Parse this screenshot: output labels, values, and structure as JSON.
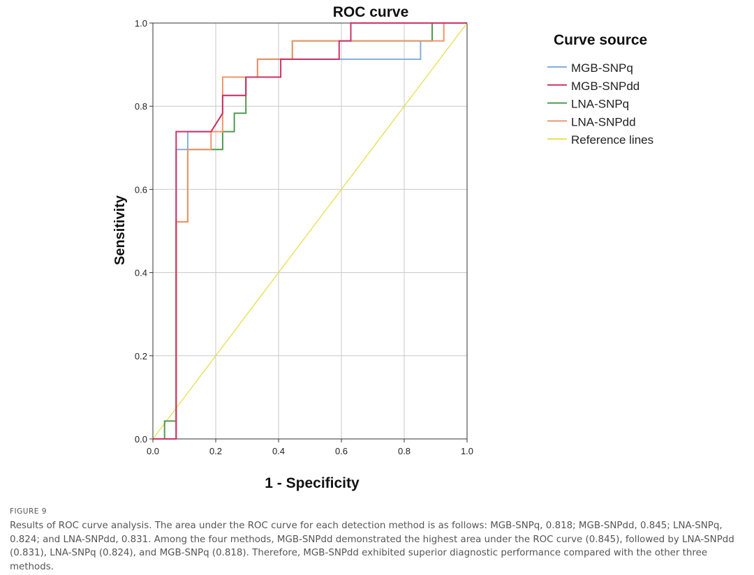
{
  "chart_data": {
    "type": "line",
    "title": "ROC curve",
    "xlabel": "1 - Specificity",
    "ylabel": "Sensitivity",
    "xlim": [
      0,
      1
    ],
    "ylim": [
      0,
      1
    ],
    "xticks": [
      "0.0",
      "0.2",
      "0.4",
      "0.6",
      "0.8",
      "1.0"
    ],
    "yticks": [
      "0.0",
      "0.2",
      "0.4",
      "0.6",
      "0.8",
      "1.0"
    ],
    "grid": true,
    "legend": {
      "title": "Curve source",
      "position": "right"
    },
    "series": [
      {
        "name": "MGB-SNPq",
        "color": "#82aee0",
        "points": [
          [
            0,
            0
          ],
          [
            0.074,
            0
          ],
          [
            0.074,
            0.696
          ],
          [
            0.111,
            0.696
          ],
          [
            0.111,
            0.739
          ],
          [
            0.185,
            0.739
          ],
          [
            0.185,
            0.739
          ],
          [
            0.222,
            0.783
          ],
          [
            0.222,
            0.826
          ],
          [
            0.296,
            0.826
          ],
          [
            0.296,
            0.87
          ],
          [
            0.333,
            0.87
          ],
          [
            0.333,
            0.913
          ],
          [
            0.852,
            0.913
          ],
          [
            0.852,
            0.957
          ],
          [
            0.889,
            0.957
          ],
          [
            0.889,
            1.0
          ],
          [
            1.0,
            1.0
          ]
        ]
      },
      {
        "name": "MGB-SNPdd",
        "color": "#cc3366",
        "points": [
          [
            0,
            0
          ],
          [
            0.074,
            0
          ],
          [
            0.074,
            0.739
          ],
          [
            0.185,
            0.739
          ],
          [
            0.222,
            0.783
          ],
          [
            0.222,
            0.826
          ],
          [
            0.296,
            0.826
          ],
          [
            0.296,
            0.87
          ],
          [
            0.407,
            0.87
          ],
          [
            0.407,
            0.913
          ],
          [
            0.593,
            0.913
          ],
          [
            0.593,
            0.957
          ],
          [
            0.63,
            0.957
          ],
          [
            0.63,
            1.0
          ],
          [
            1.0,
            1.0
          ]
        ]
      },
      {
        "name": "LNA-SNPq",
        "color": "#4f9a4f",
        "points": [
          [
            0,
            0
          ],
          [
            0.037,
            0
          ],
          [
            0.037,
            0.043
          ],
          [
            0.074,
            0.043
          ],
          [
            0.074,
            0.522
          ],
          [
            0.111,
            0.522
          ],
          [
            0.111,
            0.696
          ],
          [
            0.222,
            0.696
          ],
          [
            0.222,
            0.739
          ],
          [
            0.259,
            0.739
          ],
          [
            0.259,
            0.783
          ],
          [
            0.296,
            0.783
          ],
          [
            0.296,
            0.87
          ],
          [
            0.333,
            0.87
          ],
          [
            0.333,
            0.913
          ],
          [
            0.444,
            0.913
          ],
          [
            0.444,
            0.957
          ],
          [
            0.889,
            0.957
          ],
          [
            0.889,
            1.0
          ],
          [
            1.0,
            1.0
          ]
        ]
      },
      {
        "name": "LNA-SNPdd",
        "color": "#f0956a",
        "points": [
          [
            0,
            0
          ],
          [
            0.074,
            0
          ],
          [
            0.074,
            0.522
          ],
          [
            0.111,
            0.522
          ],
          [
            0.111,
            0.696
          ],
          [
            0.185,
            0.696
          ],
          [
            0.185,
            0.739
          ],
          [
            0.222,
            0.739
          ],
          [
            0.222,
            0.87
          ],
          [
            0.333,
            0.87
          ],
          [
            0.333,
            0.913
          ],
          [
            0.444,
            0.913
          ],
          [
            0.444,
            0.957
          ],
          [
            0.926,
            0.957
          ],
          [
            0.926,
            1.0
          ],
          [
            1.0,
            1.0
          ]
        ]
      },
      {
        "name": "Reference lines",
        "color": "#e6e04a",
        "points": [
          [
            0,
            0
          ],
          [
            1,
            1
          ]
        ]
      }
    ]
  },
  "caption": {
    "label": "FIGURE 9",
    "text": "Results of ROC curve analysis. The area under the ROC curve for each detection method is as follows: MGB-SNPq, 0.818; MGB-SNPdd, 0.845; LNA-SNPq, 0.824; and LNA-SNPdd, 0.831. Among the four methods, MGB-SNPdd demonstrated the highest area under the ROC curve (0.845), followed by LNA-SNPdd (0.831), LNA-SNPq (0.824), and MGB-SNPq (0.818). Therefore, MGB-SNPdd exhibited superior diagnostic performance compared with the other three methods."
  }
}
